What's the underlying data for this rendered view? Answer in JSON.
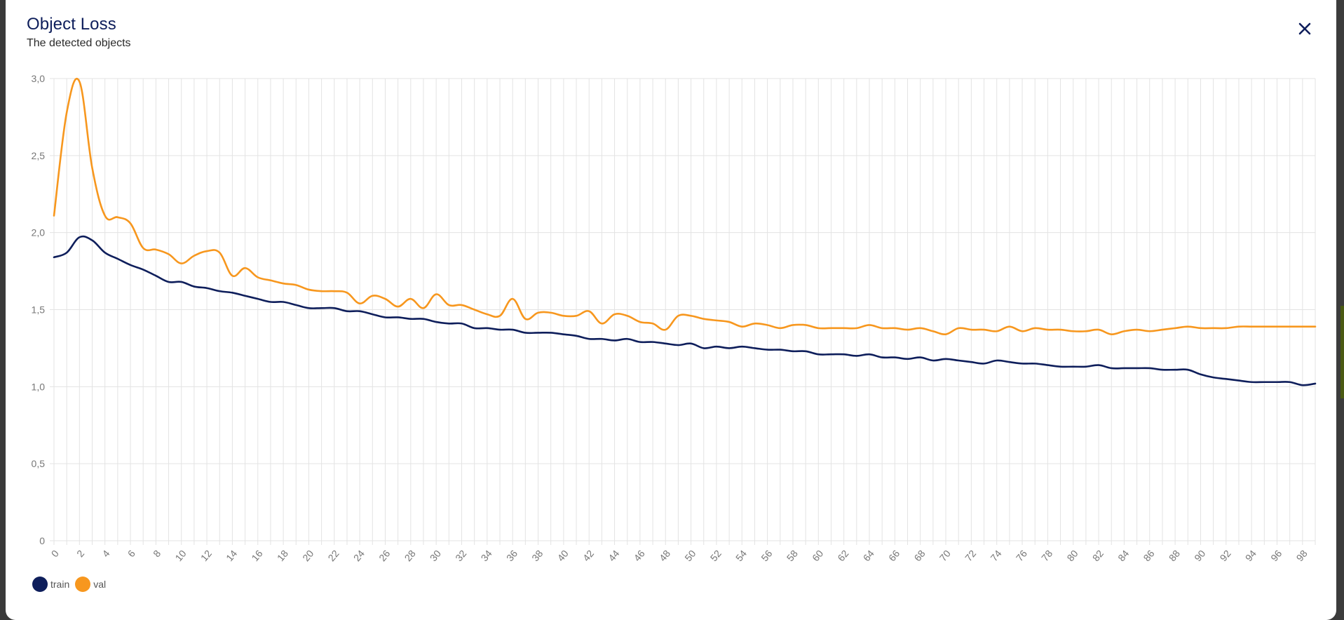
{
  "dialog": {
    "title": "Object Loss",
    "subtitle": "The detected objects",
    "close_icon": "close-icon"
  },
  "colors": {
    "train": "#0e1e5b",
    "val": "#f7971e",
    "grid": "#e3e3e3",
    "tick_text": "#777777"
  },
  "chart_data": {
    "type": "line",
    "ylim": [
      0,
      3
    ],
    "xlim": [
      0,
      99
    ],
    "yticks": [
      0,
      0.5,
      1,
      1.5,
      2,
      2.5,
      3
    ],
    "ytick_labels": [
      "0",
      "0,5",
      "1,0",
      "1,5",
      "2,0",
      "2,5",
      "3,0"
    ],
    "xticks": [
      0,
      2,
      4,
      6,
      8,
      10,
      12,
      14,
      16,
      18,
      20,
      22,
      24,
      26,
      28,
      30,
      32,
      34,
      36,
      38,
      40,
      42,
      44,
      46,
      48,
      50,
      52,
      54,
      56,
      58,
      60,
      62,
      64,
      66,
      68,
      70,
      72,
      74,
      76,
      78,
      80,
      82,
      84,
      86,
      88,
      90,
      92,
      94,
      96,
      98
    ],
    "grid": true,
    "legend_position": "bottom-left",
    "x": [
      0,
      1,
      2,
      3,
      4,
      5,
      6,
      7,
      8,
      9,
      10,
      11,
      12,
      13,
      14,
      15,
      16,
      17,
      18,
      19,
      20,
      21,
      22,
      23,
      24,
      25,
      26,
      27,
      28,
      29,
      30,
      31,
      32,
      33,
      34,
      35,
      36,
      37,
      38,
      39,
      40,
      41,
      42,
      43,
      44,
      45,
      46,
      47,
      48,
      49,
      50,
      51,
      52,
      53,
      54,
      55,
      56,
      57,
      58,
      59,
      60,
      61,
      62,
      63,
      64,
      65,
      66,
      67,
      68,
      69,
      70,
      71,
      72,
      73,
      74,
      75,
      76,
      77,
      78,
      79,
      80,
      81,
      82,
      83,
      84,
      85,
      86,
      87,
      88,
      89,
      90,
      91,
      92,
      93,
      94,
      95,
      96,
      97,
      98,
      99
    ],
    "series": [
      {
        "name": "train",
        "values": [
          1.84,
          1.87,
          1.97,
          1.95,
          1.87,
          1.83,
          1.79,
          1.76,
          1.72,
          1.68,
          1.68,
          1.65,
          1.64,
          1.62,
          1.61,
          1.59,
          1.57,
          1.55,
          1.55,
          1.53,
          1.51,
          1.51,
          1.51,
          1.49,
          1.49,
          1.47,
          1.45,
          1.45,
          1.44,
          1.44,
          1.42,
          1.41,
          1.41,
          1.38,
          1.38,
          1.37,
          1.37,
          1.35,
          1.35,
          1.35,
          1.34,
          1.33,
          1.31,
          1.31,
          1.3,
          1.31,
          1.29,
          1.29,
          1.28,
          1.27,
          1.28,
          1.25,
          1.26,
          1.25,
          1.26,
          1.25,
          1.24,
          1.24,
          1.23,
          1.23,
          1.21,
          1.21,
          1.21,
          1.2,
          1.21,
          1.19,
          1.19,
          1.18,
          1.19,
          1.17,
          1.18,
          1.17,
          1.16,
          1.15,
          1.17,
          1.16,
          1.15,
          1.15,
          1.14,
          1.13,
          1.13,
          1.13,
          1.14,
          1.12,
          1.12,
          1.12,
          1.12,
          1.11,
          1.11,
          1.11,
          1.08,
          1.06,
          1.05,
          1.04,
          1.03,
          1.03,
          1.03,
          1.03,
          1.01,
          1.02
        ]
      },
      {
        "name": "val",
        "values": [
          2.11,
          2.78,
          2.98,
          2.42,
          2.11,
          2.1,
          2.06,
          1.9,
          1.89,
          1.86,
          1.8,
          1.85,
          1.88,
          1.87,
          1.72,
          1.77,
          1.71,
          1.69,
          1.67,
          1.66,
          1.63,
          1.62,
          1.62,
          1.61,
          1.54,
          1.59,
          1.57,
          1.52,
          1.57,
          1.51,
          1.6,
          1.53,
          1.53,
          1.5,
          1.47,
          1.46,
          1.57,
          1.44,
          1.48,
          1.48,
          1.46,
          1.46,
          1.49,
          1.41,
          1.47,
          1.46,
          1.42,
          1.41,
          1.37,
          1.46,
          1.46,
          1.44,
          1.43,
          1.42,
          1.39,
          1.41,
          1.4,
          1.38,
          1.4,
          1.4,
          1.38,
          1.38,
          1.38,
          1.38,
          1.4,
          1.38,
          1.38,
          1.37,
          1.38,
          1.36,
          1.34,
          1.38,
          1.37,
          1.37,
          1.36,
          1.39,
          1.36,
          1.38,
          1.37,
          1.37,
          1.36,
          1.36,
          1.37,
          1.34,
          1.36,
          1.37,
          1.36,
          1.37,
          1.38,
          1.39,
          1.38,
          1.38,
          1.38,
          1.39,
          1.39,
          1.39,
          1.39,
          1.39,
          1.39,
          1.39
        ]
      }
    ]
  }
}
